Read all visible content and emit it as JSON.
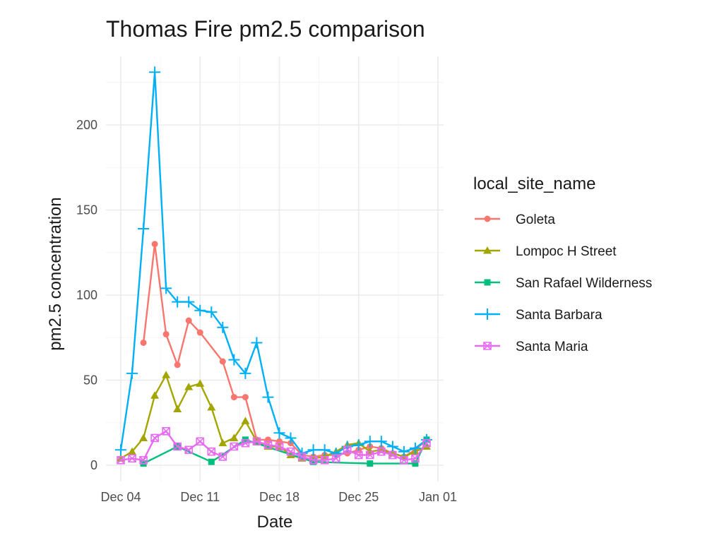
{
  "chart_data": {
    "type": "line",
    "title": "Thomas Fire pm2.5 comparison",
    "xlabel": "Date",
    "ylabel": "pm2.5 concentration",
    "grid": true,
    "legend_title": "local_site_name",
    "legend_position": "right",
    "xlim": [
      "2017-12-04",
      "2018-01-01"
    ],
    "ylim": [
      0,
      230
    ],
    "x_ticks": [
      {
        "date": "2017-12-04",
        "label": "Dec 04"
      },
      {
        "date": "2017-12-11",
        "label": "Dec 11"
      },
      {
        "date": "2017-12-18",
        "label": "Dec 18"
      },
      {
        "date": "2017-12-25",
        "label": "Dec 25"
      },
      {
        "date": "2018-01-01",
        "label": "Jan 01"
      }
    ],
    "y_ticks": [
      0,
      50,
      100,
      150,
      200
    ],
    "series": [
      {
        "name": "Goleta",
        "color": "#F8766D",
        "marker": "circle",
        "points": [
          [
            "2017-12-06",
            72
          ],
          [
            "2017-12-07",
            130
          ],
          [
            "2017-12-08",
            77
          ],
          [
            "2017-12-09",
            59
          ],
          [
            "2017-12-10",
            85
          ],
          [
            "2017-12-11",
            78
          ],
          [
            "2017-12-13",
            61
          ],
          [
            "2017-12-14",
            40
          ],
          [
            "2017-12-15",
            40
          ],
          [
            "2017-12-16",
            15
          ],
          [
            "2017-12-17",
            15
          ],
          [
            "2017-12-18",
            14
          ],
          [
            "2017-12-19",
            13
          ],
          [
            "2017-12-20",
            6
          ],
          [
            "2017-12-21",
            5
          ],
          [
            "2017-12-22",
            6
          ],
          [
            "2017-12-23",
            6
          ],
          [
            "2017-12-24",
            7
          ],
          [
            "2017-12-25",
            9
          ],
          [
            "2017-12-26",
            11
          ],
          [
            "2017-12-27",
            10
          ],
          [
            "2017-12-28",
            7
          ],
          [
            "2017-12-29",
            5
          ],
          [
            "2017-12-30",
            9
          ],
          [
            "2017-12-31",
            15
          ]
        ]
      },
      {
        "name": "Lompoc H Street",
        "color": "#A3A500",
        "marker": "triangle",
        "points": [
          [
            "2017-12-04",
            4
          ],
          [
            "2017-12-05",
            8
          ],
          [
            "2017-12-06",
            16
          ],
          [
            "2017-12-07",
            41
          ],
          [
            "2017-12-08",
            53
          ],
          [
            "2017-12-09",
            33
          ],
          [
            "2017-12-10",
            46
          ],
          [
            "2017-12-11",
            48
          ],
          [
            "2017-12-12",
            34
          ],
          [
            "2017-12-13",
            13
          ],
          [
            "2017-12-14",
            16
          ],
          [
            "2017-12-15",
            26
          ],
          [
            "2017-12-16",
            14
          ],
          [
            "2017-12-17",
            11
          ],
          [
            "2017-12-18",
            11
          ],
          [
            "2017-12-19",
            6
          ],
          [
            "2017-12-20",
            4
          ],
          [
            "2017-12-21",
            4
          ],
          [
            "2017-12-22",
            5
          ],
          [
            "2017-12-23",
            8
          ],
          [
            "2017-12-24",
            12
          ],
          [
            "2017-12-25",
            13
          ],
          [
            "2017-12-26",
            8
          ],
          [
            "2017-12-27",
            9
          ],
          [
            "2017-12-28",
            7
          ],
          [
            "2017-12-29",
            5
          ],
          [
            "2017-12-30",
            8
          ],
          [
            "2017-12-31",
            11
          ]
        ]
      },
      {
        "name": "San Rafael Wilderness",
        "color": "#00BF7D",
        "marker": "square",
        "points": [
          [
            "2017-12-06",
            1
          ],
          [
            "2017-12-09",
            11
          ],
          [
            "2017-12-12",
            2
          ],
          [
            "2017-12-15",
            15
          ],
          [
            "2017-12-21",
            2
          ],
          [
            "2017-12-26",
            1
          ],
          [
            "2017-12-30",
            1
          ],
          [
            "2017-12-31",
            15
          ]
        ]
      },
      {
        "name": "Santa Barbara",
        "color": "#00B0F6",
        "marker": "plus",
        "points": [
          [
            "2017-12-04",
            9
          ],
          [
            "2017-12-05",
            54
          ],
          [
            "2017-12-06",
            139
          ],
          [
            "2017-12-07",
            231
          ],
          [
            "2017-12-08",
            104
          ],
          [
            "2017-12-09",
            96
          ],
          [
            "2017-12-10",
            96
          ],
          [
            "2017-12-11",
            91
          ],
          [
            "2017-12-12",
            90
          ],
          [
            "2017-12-13",
            81
          ],
          [
            "2017-12-14",
            62
          ],
          [
            "2017-12-15",
            54
          ],
          [
            "2017-12-16",
            72
          ],
          [
            "2017-12-17",
            40
          ],
          [
            "2017-12-18",
            19
          ],
          [
            "2017-12-19",
            16
          ],
          [
            "2017-12-20",
            7
          ],
          [
            "2017-12-21",
            9
          ],
          [
            "2017-12-22",
            9
          ],
          [
            "2017-12-23",
            7
          ],
          [
            "2017-12-24",
            11
          ],
          [
            "2017-12-25",
            12
          ],
          [
            "2017-12-26",
            14
          ],
          [
            "2017-12-27",
            14
          ],
          [
            "2017-12-28",
            11
          ],
          [
            "2017-12-29",
            8
          ],
          [
            "2017-12-30",
            10
          ],
          [
            "2017-12-31",
            15
          ]
        ]
      },
      {
        "name": "Santa Maria",
        "color": "#E76BF3",
        "marker": "square-x",
        "points": [
          [
            "2017-12-04",
            3
          ],
          [
            "2017-12-05",
            4
          ],
          [
            "2017-12-06",
            3
          ],
          [
            "2017-12-07",
            16
          ],
          [
            "2017-12-08",
            20
          ],
          [
            "2017-12-09",
            11
          ],
          [
            "2017-12-10",
            9
          ],
          [
            "2017-12-11",
            14
          ],
          [
            "2017-12-12",
            8
          ],
          [
            "2017-12-13",
            5
          ],
          [
            "2017-12-14",
            11
          ],
          [
            "2017-12-15",
            13
          ],
          [
            "2017-12-16",
            14
          ],
          [
            "2017-12-17",
            12
          ],
          [
            "2017-12-18",
            11
          ],
          [
            "2017-12-19",
            8
          ],
          [
            "2017-12-20",
            5
          ],
          [
            "2017-12-21",
            3
          ],
          [
            "2017-12-22",
            3
          ],
          [
            "2017-12-23",
            4
          ],
          [
            "2017-12-24",
            9
          ],
          [
            "2017-12-25",
            6
          ],
          [
            "2017-12-26",
            6
          ],
          [
            "2017-12-27",
            8
          ],
          [
            "2017-12-28",
            6
          ],
          [
            "2017-12-29",
            3
          ],
          [
            "2017-12-30",
            4
          ],
          [
            "2017-12-31",
            13
          ]
        ]
      }
    ]
  }
}
